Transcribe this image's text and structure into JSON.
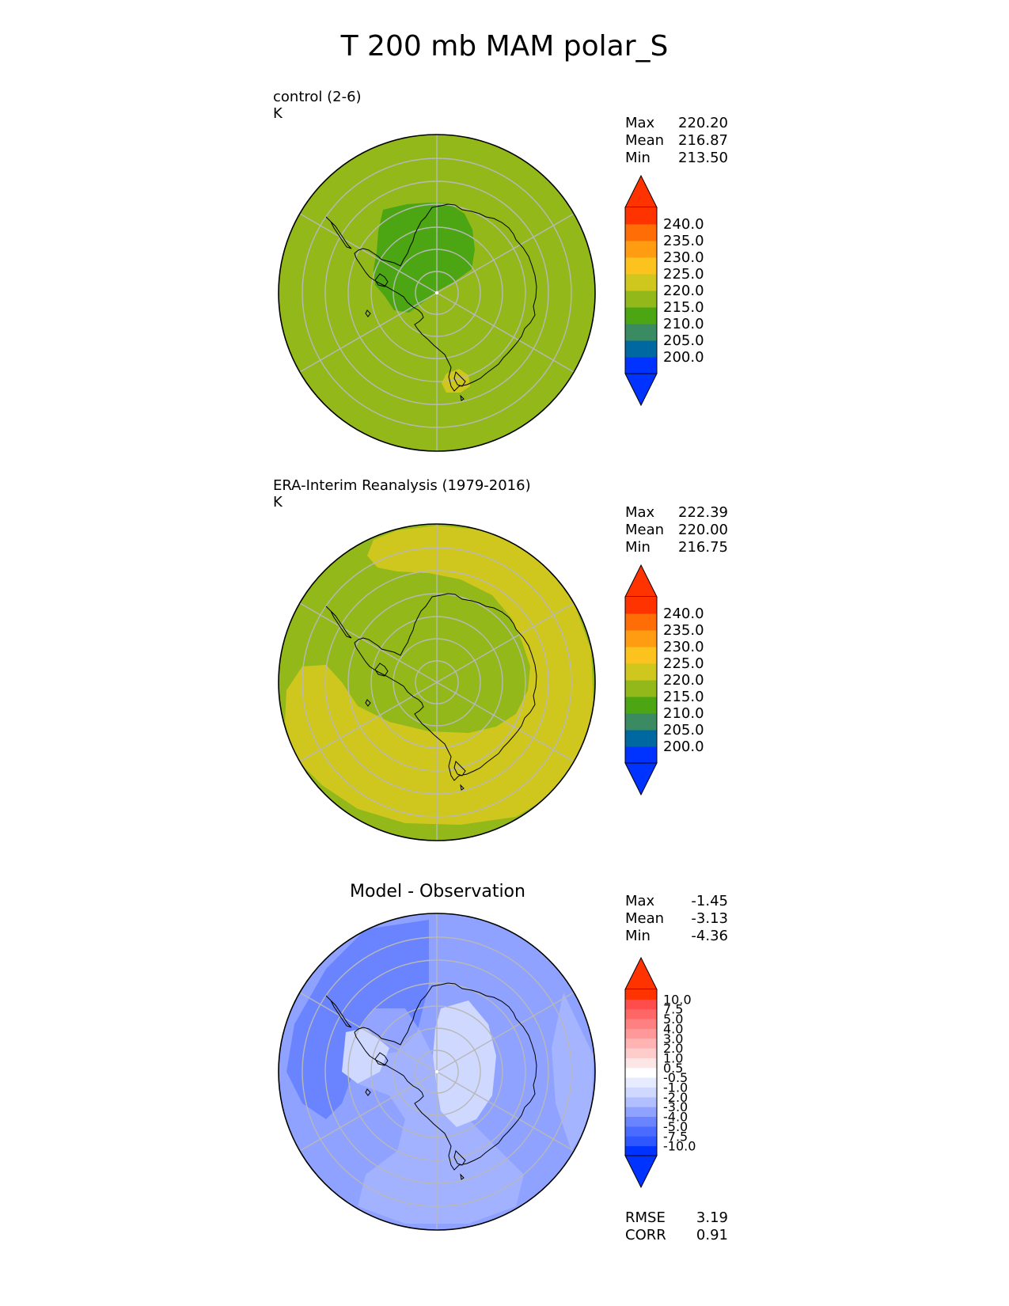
{
  "title": "T 200 mb MAM polar_S",
  "panels": [
    {
      "title": "control (2-6)",
      "units": "K",
      "stats": [
        [
          "Max",
          "220.20"
        ],
        [
          "Mean",
          "216.87"
        ],
        [
          "Min",
          "213.50"
        ]
      ]
    },
    {
      "title": "ERA-Interim Reanalysis (1979-2016)",
      "units": "K",
      "stats": [
        [
          "Max",
          "222.39"
        ],
        [
          "Mean",
          "220.00"
        ],
        [
          "Min",
          "216.75"
        ]
      ]
    },
    {
      "title": "Model - Observation",
      "units": "",
      "stats": [
        [
          "Max",
          "-1.45"
        ],
        [
          "Mean",
          "-3.13"
        ],
        [
          "Min",
          "-4.36"
        ]
      ],
      "metrics": [
        [
          "RMSE",
          "3.19"
        ],
        [
          "CORR",
          "0.91"
        ]
      ]
    }
  ],
  "colors": {
    "abs_bins": [
      "#0033ff",
      "#0068a0",
      "#3a8a62",
      "#4ca614",
      "#92b81a",
      "#d0c71e",
      "#fcc21e",
      "#ff9c12",
      "#ff6d07",
      "#ff3300"
    ],
    "abs_under": "#0033ff",
    "abs_over": "#ff3300",
    "diff_bins": [
      "#0033ff",
      "#2e57ff",
      "#4a6bff",
      "#6a84ff",
      "#8fa2ff",
      "#b2bfff",
      "#cfd8ff",
      "#e6ebff",
      "#ffffff",
      "#fde6e6",
      "#ffcccc",
      "#ffb3b3",
      "#ff9999",
      "#ff8080",
      "#ff6666",
      "#ff4d4d",
      "#ff3300"
    ],
    "diff_under": "#0033ff",
    "diff_over": "#ff3300"
  },
  "chart_data": [
    {
      "type": "polar_contour_map",
      "title": "control (2-6)",
      "units": "K",
      "projection": "south polar stereographic",
      "colorbar_levels": [
        200,
        205,
        210,
        215,
        220,
        225,
        230,
        235,
        240
      ],
      "colorbar_labels": [
        "240.0",
        "235.0",
        "230.0",
        "225.0",
        "220.0",
        "215.0",
        "210.0",
        "205.0",
        "200.0"
      ],
      "stats": {
        "max": 220.2,
        "mean": 216.87,
        "min": 213.5
      }
    },
    {
      "type": "polar_contour_map",
      "title": "ERA-Interim Reanalysis (1979-2016)",
      "units": "K",
      "projection": "south polar stereographic",
      "colorbar_levels": [
        200,
        205,
        210,
        215,
        220,
        225,
        230,
        235,
        240
      ],
      "colorbar_labels": [
        "240.0",
        "235.0",
        "230.0",
        "225.0",
        "220.0",
        "215.0",
        "210.0",
        "205.0",
        "200.0"
      ],
      "stats": {
        "max": 222.39,
        "mean": 220.0,
        "min": 216.75
      }
    },
    {
      "type": "polar_contour_map",
      "title": "Model - Observation",
      "projection": "south polar stereographic",
      "colorbar_levels": [
        -10,
        -7.5,
        -5,
        -4,
        -3,
        -2,
        -1,
        -0.5,
        0.5,
        1,
        2,
        3,
        4,
        5,
        7.5,
        10
      ],
      "colorbar_labels": [
        "10.0",
        "7.5",
        "5.0",
        "4.0",
        "3.0",
        "2.0",
        "1.0",
        "0.5",
        "-0.5",
        "-1.0",
        "-2.0",
        "-3.0",
        "-4.0",
        "-5.0",
        "-7.5",
        "-10.0"
      ],
      "stats": {
        "max": -1.45,
        "mean": -3.13,
        "min": -4.36
      },
      "metrics": {
        "rmse": 3.19,
        "corr": 0.91
      }
    }
  ]
}
